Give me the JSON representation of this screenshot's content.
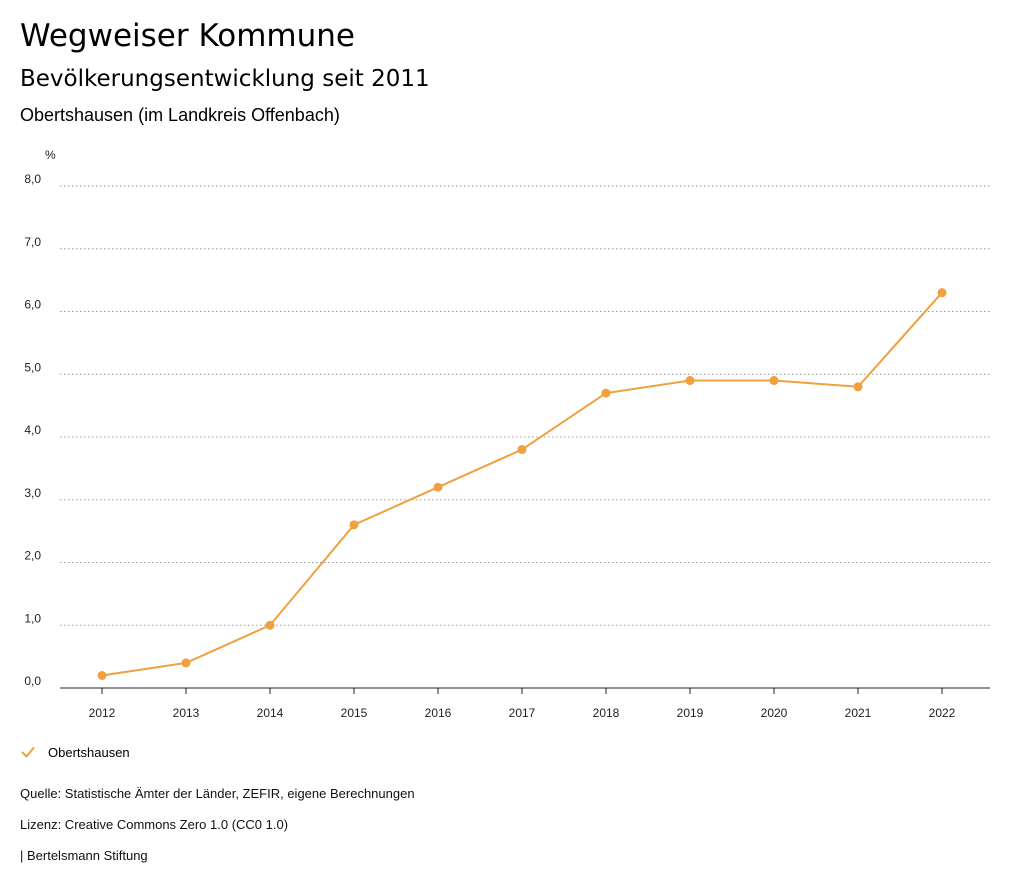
{
  "header": {
    "title": "Wegweiser Kommune",
    "subtitle": "Bevölkerungsentwicklung seit 2011",
    "region": "Obertshausen (im Landkreis Offenbach)"
  },
  "colors": {
    "series": "#f0a03c",
    "grid": "#9a9a9a"
  },
  "chart_data": {
    "type": "line",
    "ylabel": "%",
    "x": [
      "2012",
      "2013",
      "2014",
      "2015",
      "2016",
      "2017",
      "2018",
      "2019",
      "2020",
      "2021",
      "2022"
    ],
    "series": [
      {
        "name": "Obertshausen",
        "values": [
          0.2,
          0.4,
          1.0,
          2.6,
          3.2,
          3.8,
          4.7,
          4.9,
          4.9,
          4.8,
          6.3
        ]
      }
    ],
    "yticks": [
      "0,0",
      "1,0",
      "2,0",
      "3,0",
      "4,0",
      "5,0",
      "6,0",
      "7,0",
      "8,0"
    ],
    "ylim": [
      0,
      8
    ],
    "grid": true,
    "legend": "bottom-left"
  },
  "legend": {
    "label": "Obertshausen",
    "icon": "check-icon"
  },
  "footer": {
    "source": "Quelle: Statistische Ämter der Länder, ZEFIR, eigene Berechnungen",
    "license": "Lizenz: Creative Commons Zero 1.0 (CC0 1.0)",
    "publisher": "| Bertelsmann Stiftung"
  }
}
